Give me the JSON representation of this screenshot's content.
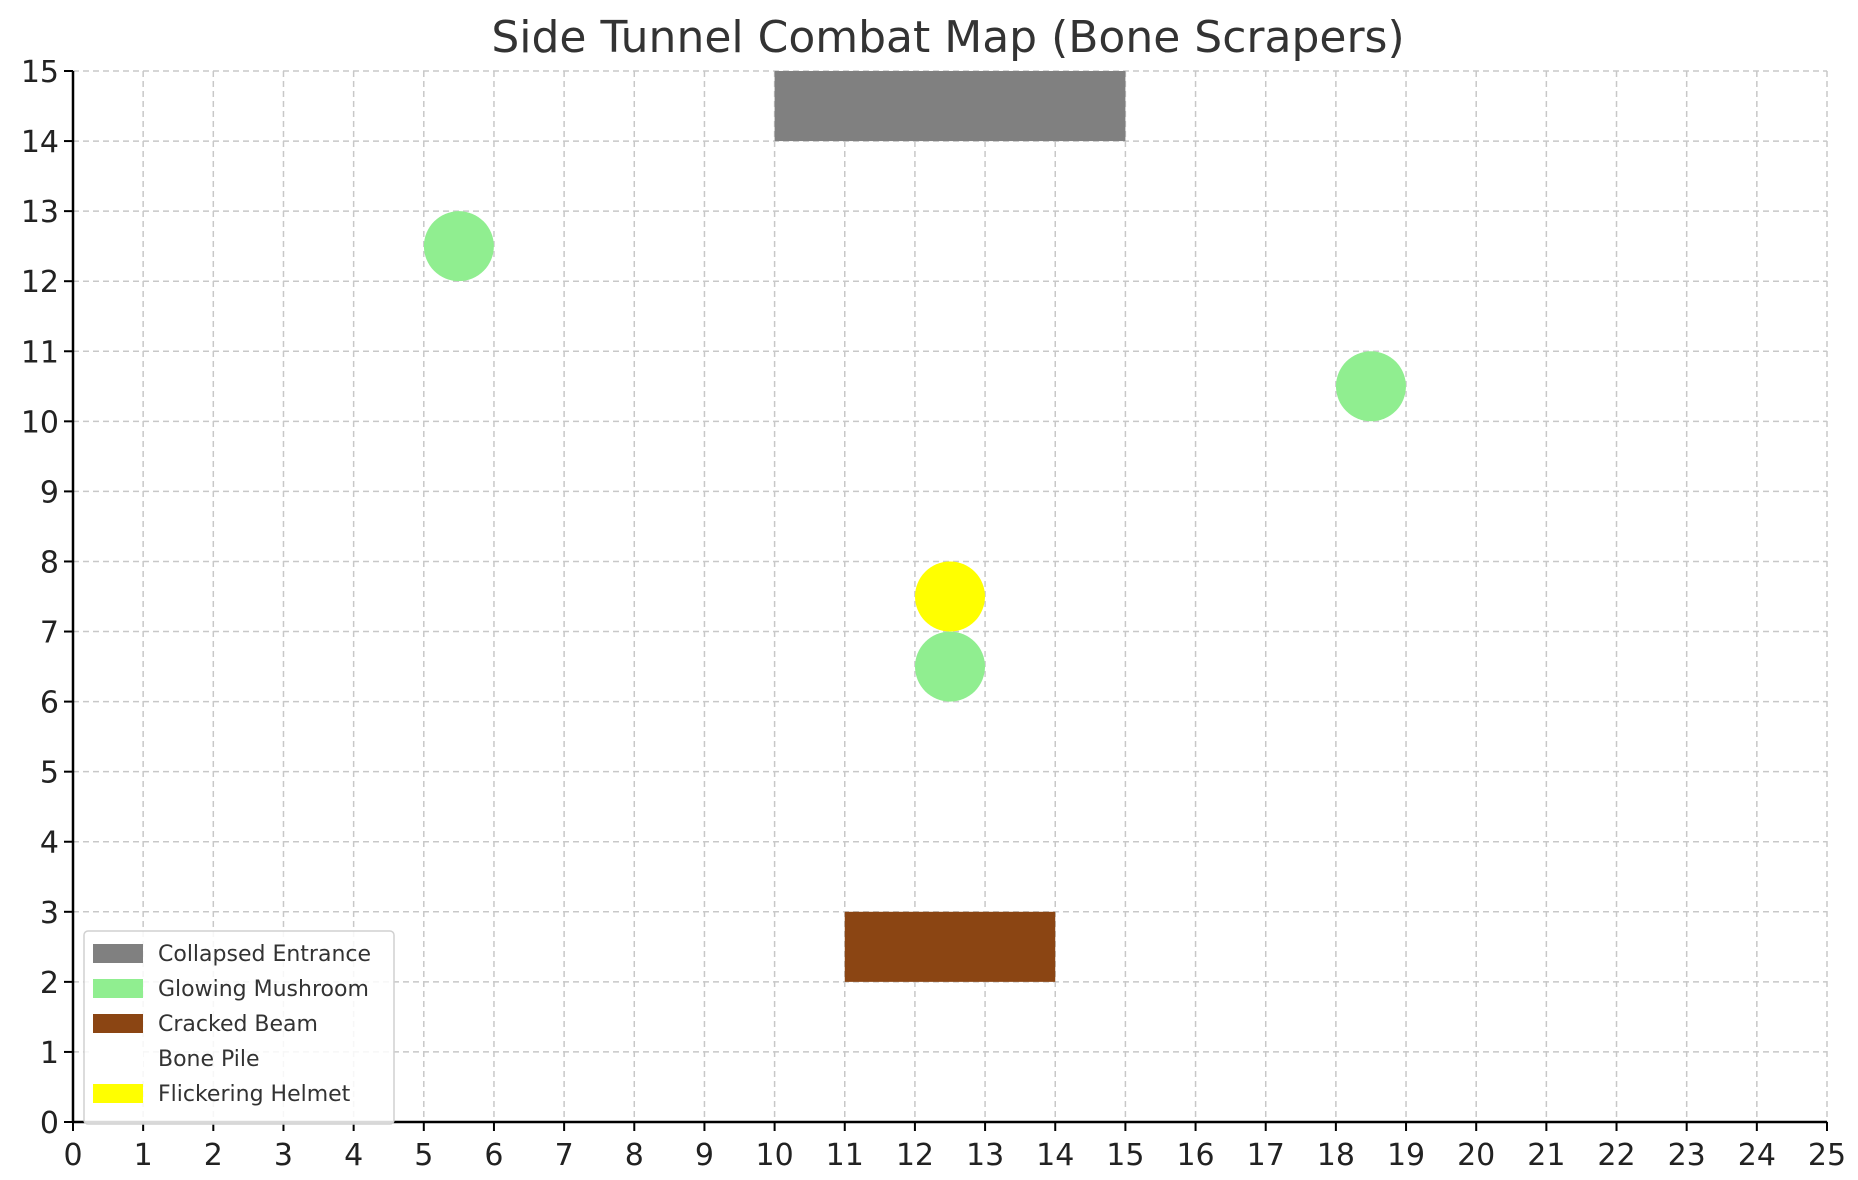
{
  "chart_data": {
    "type": "scatter",
    "title": "Side Tunnel Combat Map (Bone Scrapers)",
    "xlabel": "",
    "ylabel": "",
    "xlim": [
      0,
      25
    ],
    "ylim": [
      0,
      15
    ],
    "x_ticks": [
      "0",
      "1",
      "2",
      "3",
      "4",
      "5",
      "6",
      "7",
      "8",
      "9",
      "10",
      "11",
      "12",
      "13",
      "14",
      "15",
      "16",
      "17",
      "18",
      "19",
      "20",
      "21",
      "22",
      "23",
      "24",
      "25"
    ],
    "y_ticks": [
      "0",
      "1",
      "2",
      "3",
      "4",
      "5",
      "6",
      "7",
      "8",
      "9",
      "10",
      "11",
      "12",
      "13",
      "14",
      "15"
    ],
    "grid": true,
    "legend_position": "lower-left",
    "legend": [
      {
        "label": "Collapsed Entrance",
        "color": "#808080"
      },
      {
        "label": "Glowing Mushroom",
        "color": "#90EE90"
      },
      {
        "label": "Cracked Beam",
        "color": "#8B4513"
      },
      {
        "label": "Bone Pile",
        "color": "#ffffff"
      },
      {
        "label": "Flickering Helmet",
        "color": "#FFFF00"
      }
    ],
    "rectangles": [
      {
        "label": "Collapsed Entrance",
        "x0": 10,
        "x1": 15,
        "y0": 14,
        "y1": 15,
        "color": "#808080"
      },
      {
        "label": "Cracked Beam",
        "x0": 11,
        "x1": 14,
        "y0": 2,
        "y1": 3,
        "color": "#8B4513"
      }
    ],
    "points": [
      {
        "label": "Glowing Mushroom",
        "x": 5.5,
        "y": 12.5,
        "color": "#90EE90"
      },
      {
        "label": "Glowing Mushroom",
        "x": 18.5,
        "y": 10.5,
        "color": "#90EE90"
      },
      {
        "label": "Glowing Mushroom",
        "x": 12.5,
        "y": 6.5,
        "color": "#90EE90"
      },
      {
        "label": "Flickering Helmet",
        "x": 12.5,
        "y": 7.5,
        "color": "#FFFF00"
      }
    ]
  }
}
